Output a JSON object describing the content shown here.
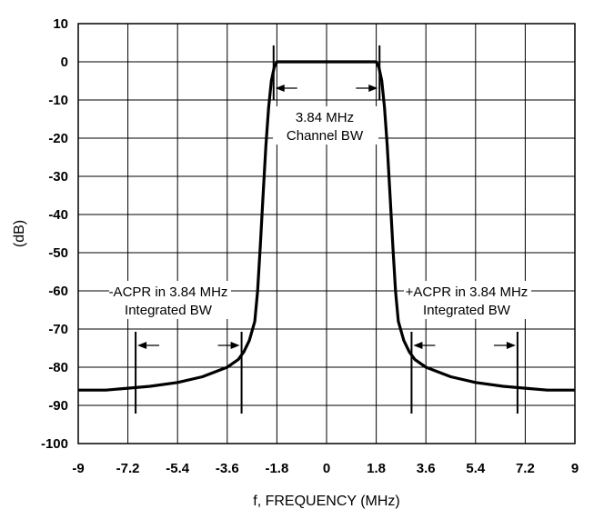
{
  "chart_data": {
    "type": "line",
    "xlabel": "f, FREQUENCY (MHz)",
    "ylabel": "(dB)",
    "xlim": [
      -9,
      9
    ],
    "ylim": [
      -100,
      10
    ],
    "x_ticks": [
      -9,
      -7.2,
      -5.4,
      -3.6,
      -1.8,
      0,
      1.8,
      3.6,
      5.4,
      7.2,
      9
    ],
    "x_tick_labels": [
      "-9",
      "-7.2",
      "-5.4",
      "-3.6",
      "-1.8",
      "0",
      "1.8",
      "3.6",
      "5.4",
      "7.2",
      "9"
    ],
    "y_ticks": [
      10,
      0,
      -10,
      -20,
      -30,
      -40,
      -50,
      -60,
      -70,
      -80,
      -90,
      -100
    ],
    "y_tick_labels": [
      "10",
      "0",
      "-10",
      "-20",
      "-30",
      "-40",
      "-50",
      "-60",
      "-70",
      "-80",
      "-90",
      "-100"
    ],
    "grid": true,
    "series": [
      {
        "x": [
          -9,
          -8,
          -7.2,
          -6.4,
          -5.4,
          -4.5,
          -3.6,
          -3.2,
          -3.0,
          -2.8,
          -2.6,
          -2.5,
          -2.4,
          -2.3,
          -2.2,
          -2.1,
          -2.0,
          -1.9,
          -1.8,
          -1.6,
          -1.4,
          -1.0,
          0,
          1.0,
          1.4,
          1.6,
          1.8,
          1.9,
          2.0,
          2.1,
          2.2,
          2.3,
          2.4,
          2.5,
          2.6,
          2.8,
          3.0,
          3.2,
          3.6,
          4.5,
          5.4,
          6.4,
          7.2,
          8,
          9
        ],
        "y": [
          -86,
          -86,
          -85.5,
          -85,
          -84,
          -82.5,
          -80,
          -78,
          -76,
          -73,
          -68,
          -60,
          -48,
          -35,
          -22,
          -12,
          -5,
          -1.5,
          0,
          0,
          0,
          0,
          0,
          0,
          0,
          0,
          0,
          -1.5,
          -5,
          -12,
          -22,
          -35,
          -48,
          -60,
          -68,
          -73,
          -76,
          -78,
          -80,
          -82.5,
          -84,
          -85,
          -85.5,
          -86,
          -86
        ]
      }
    ],
    "annotations": {
      "channel": {
        "line1": "3.84 MHz",
        "line2": "Channel BW",
        "x_from": -1.92,
        "x_to": 1.92
      },
      "lower_acpr": {
        "line1": "-ACPR in 3.84 MHz",
        "line2": "Integrated BW",
        "x_from": -6.92,
        "x_to": -3.08
      },
      "upper_acpr": {
        "line1": "+ACPR in 3.84 MHz",
        "line2": "Integrated BW",
        "x_from": 3.08,
        "x_to": 6.92
      }
    }
  }
}
